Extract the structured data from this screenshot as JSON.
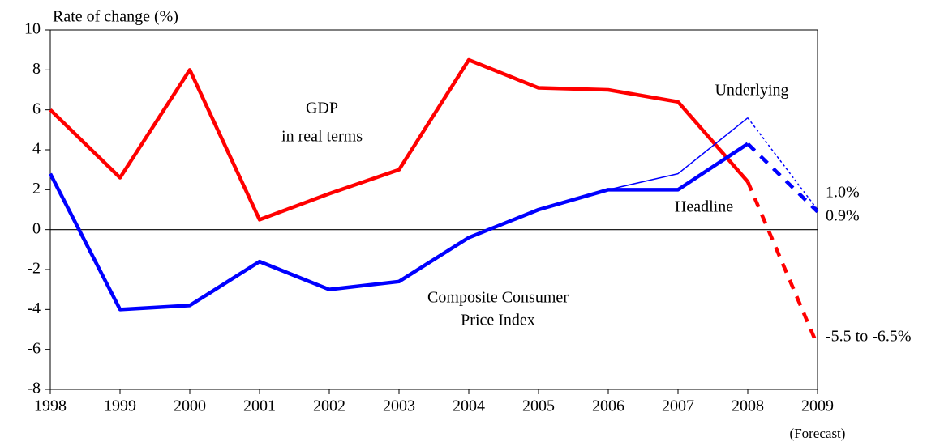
{
  "chart_data": {
    "type": "line",
    "y_label": "Rate of change (%)",
    "x": [
      1998,
      1999,
      2000,
      2001,
      2002,
      2003,
      2004,
      2005,
      2006,
      2007,
      2008,
      2009
    ],
    "x_note": "(Forecast)",
    "xlim": [
      1998,
      2009
    ],
    "xticks": [
      1998,
      1999,
      2000,
      2001,
      2002,
      2003,
      2004,
      2005,
      2006,
      2007,
      2008,
      2009
    ],
    "ylim": [
      -8,
      10
    ],
    "yticks": [
      -8,
      -6,
      -4,
      -2,
      0,
      2,
      4,
      6,
      8,
      10
    ],
    "series": [
      {
        "color": "#ff0000",
        "width": 4.5,
        "style": "solid",
        "values": [
          6.0,
          2.6,
          8.0,
          0.5,
          1.8,
          3.0,
          8.5,
          7.1,
          7.0,
          6.4,
          2.4,
          null
        ]
      },
      {
        "color": "#ff0000",
        "width": 4.5,
        "style": "dashed",
        "values": [
          null,
          null,
          null,
          null,
          null,
          null,
          null,
          null,
          null,
          null,
          2.4,
          -5.8
        ]
      },
      {
        "color": "#0000ff",
        "width": 1.5,
        "style": "solid",
        "values": [
          null,
          null,
          null,
          null,
          null,
          null,
          null,
          null,
          2.0,
          2.8,
          5.6,
          null
        ]
      },
      {
        "color": "#0000ff",
        "width": 1.5,
        "style": "dotted",
        "values": [
          null,
          null,
          null,
          null,
          null,
          null,
          null,
          null,
          null,
          null,
          5.6,
          1.0
        ]
      },
      {
        "color": "#0000ff",
        "width": 4.5,
        "style": "solid",
        "values": [
          2.8,
          -4.0,
          -3.8,
          -1.6,
          -3.0,
          -2.6,
          -0.4,
          1.0,
          2.0,
          2.0,
          4.3,
          null
        ]
      },
      {
        "color": "#0000ff",
        "width": 4.5,
        "style": "dashed",
        "values": [
          null,
          null,
          null,
          null,
          null,
          null,
          null,
          null,
          null,
          null,
          4.3,
          0.9
        ]
      }
    ],
    "annotations": [
      "GDP",
      "in real terms",
      "Underlying",
      "Headline",
      "Composite Consumer",
      "Price Index",
      "1.0%",
      "0.9%",
      "-5.5 to -6.5%"
    ]
  }
}
